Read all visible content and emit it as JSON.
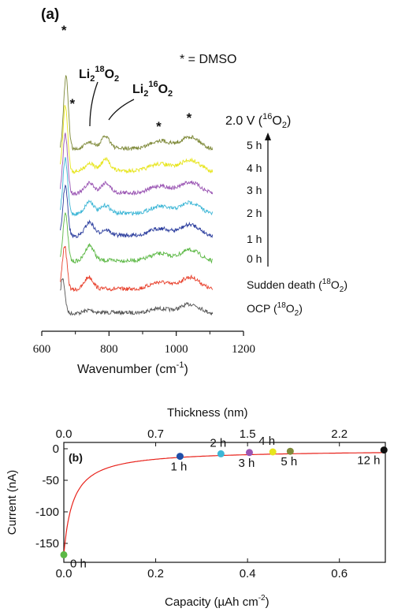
{
  "chart_data": [
    {
      "panel_label": "(a)",
      "type": "line",
      "xlabel": "Wavenumber (cm",
      "xlabel_sup": "-1",
      "xlabel_end": ")",
      "xlim": [
        600,
        1200
      ],
      "xticks": [
        "600",
        "800",
        "1000",
        "1200"
      ],
      "legend_note": "* = DMSO",
      "voltage_label": "2.0 V (",
      "voltage_sup": "16",
      "voltage_end": "O",
      "voltage_sub": "2",
      "voltage_close": ")",
      "annotations": [
        {
          "text": "Li",
          "sub": "2",
          "sup": "18",
          "text2": "O",
          "sub2": "2",
          "peak": 740
        },
        {
          "text": "Li",
          "sub": "2",
          "sup": "16",
          "text2": "O",
          "sub2": "2",
          "peak": 790
        }
      ],
      "dmso_peaks": [
        670,
        695,
        952,
        1042
      ],
      "series": [
        {
          "name": "OCP (18O2)",
          "label": "OCP (",
          "sup": "18",
          "end": "O",
          "sub": "2",
          "close": ")",
          "color": "#555555",
          "peaks": [
            [
              662,
              1.6
            ],
            [
              740,
              0.12
            ],
            [
              952,
              0.22
            ],
            [
              1042,
              0.45
            ]
          ]
        },
        {
          "name": "Sudden death (18O2)",
          "label": "Sudden death (",
          "sup": "18",
          "end": "O",
          "sub": "2",
          "close": ")",
          "color": "#e8402c",
          "peaks": [
            [
              668,
              2.0
            ],
            [
              740,
              0.55
            ],
            [
              952,
              0.35
            ],
            [
              1042,
              0.6
            ]
          ]
        },
        {
          "name": "0 h",
          "label": "0 h",
          "color": "#5cb845",
          "peaks": [
            [
              670,
              2.2
            ],
            [
              742,
              0.7
            ],
            [
              952,
              0.35
            ],
            [
              1042,
              0.55
            ]
          ]
        },
        {
          "name": "1 h",
          "label": "1 h",
          "color": "#2c3e9e",
          "peaks": [
            [
              670,
              2.3
            ],
            [
              742,
              0.6
            ],
            [
              790,
              0.25
            ],
            [
              952,
              0.35
            ],
            [
              1042,
              0.55
            ]
          ]
        },
        {
          "name": "2 h",
          "label": "2 h",
          "color": "#3cb6d6",
          "peaks": [
            [
              670,
              2.5
            ],
            [
              742,
              0.55
            ],
            [
              790,
              0.35
            ],
            [
              952,
              0.35
            ],
            [
              1042,
              0.55
            ]
          ]
        },
        {
          "name": "3 h",
          "label": "3 h",
          "color": "#9a55b3",
          "peaks": [
            [
              670,
              2.7
            ],
            [
              742,
              0.45
            ],
            [
              790,
              0.45
            ],
            [
              952,
              0.35
            ],
            [
              1042,
              0.55
            ]
          ]
        },
        {
          "name": "4 h",
          "label": "4 h",
          "color": "#e7e51c",
          "peaks": [
            [
              670,
              3.0
            ],
            [
              742,
              0.35
            ],
            [
              790,
              0.5
            ],
            [
              952,
              0.35
            ],
            [
              1042,
              0.55
            ]
          ]
        },
        {
          "name": "5 h",
          "label": "5 h",
          "color": "#7f8a3a",
          "peaks": [
            [
              672,
              3.3
            ],
            [
              742,
              0.3
            ],
            [
              790,
              0.55
            ],
            [
              952,
              0.4
            ],
            [
              1042,
              0.6
            ]
          ]
        }
      ]
    },
    {
      "panel_label": "(b)",
      "type": "line",
      "xlabel": "Capacity (",
      "xlabel_mu": "µAh cm",
      "xlabel_sup": "-2",
      "xlabel_end": ")",
      "ylabel": "Current (nA)",
      "top_axis_label": "Thickness (nm)",
      "xlim": [
        0,
        0.7
      ],
      "ylim": [
        -180,
        10
      ],
      "xticks": [
        "0.0",
        "0.2",
        "0.4",
        "0.6"
      ],
      "xtick_values": [
        0,
        0.2,
        0.4,
        0.6
      ],
      "yticks": [
        "0",
        "-50",
        "-100",
        "-150"
      ],
      "ytick_values": [
        0,
        -50,
        -100,
        -150
      ],
      "top_ticks": [
        "0.0",
        "0.7",
        "1.5",
        "2.2"
      ],
      "top_tick_capacity": [
        0.0,
        0.2,
        0.4,
        0.6
      ],
      "curve_color": "#e8231c",
      "points": [
        {
          "label": "0 h",
          "x": 0.0,
          "y": -168,
          "color": "#5cb845"
        },
        {
          "label": "1 h",
          "x": 0.253,
          "y": -12,
          "color": "#1f4fa8"
        },
        {
          "label": "2 h",
          "x": 0.342,
          "y": -8,
          "color": "#3cb6d6"
        },
        {
          "label": "3 h",
          "x": 0.404,
          "y": -6,
          "color": "#9a55b3"
        },
        {
          "label": "4 h",
          "x": 0.455,
          "y": -5,
          "color": "#e7e51c"
        },
        {
          "label": "5 h",
          "x": 0.493,
          "y": -4,
          "color": "#7f8a3a"
        },
        {
          "label": "12 h",
          "x": 0.697,
          "y": -2,
          "color": "#111111"
        }
      ]
    }
  ]
}
